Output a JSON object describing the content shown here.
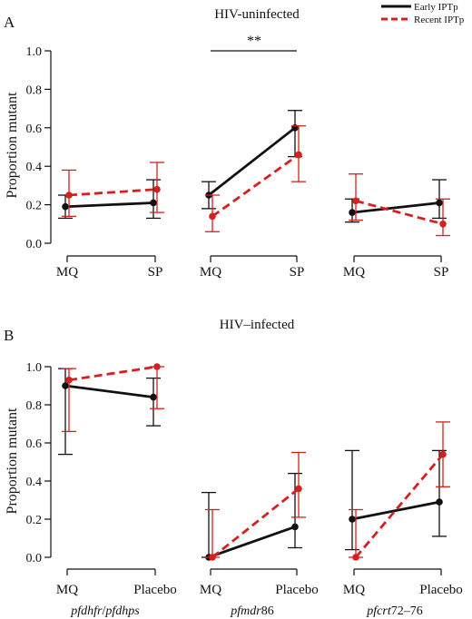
{
  "colors": {
    "early": "#111111",
    "recent": "#d62020"
  },
  "legend": {
    "early_label": "Early IPTp",
    "recent_label": "Recent IPTp"
  },
  "chart_data": [
    {
      "type": "line",
      "panel": "A",
      "title": "HIV-uninfected",
      "ylabel": "Proportion mutant",
      "ylim": [
        0,
        1
      ],
      "yticks": [
        "0.0",
        "0.2",
        "0.4",
        "0.6",
        "0.8",
        "1.0"
      ],
      "significance": "**",
      "groups": [
        {
          "categories": [
            "MQ",
            "SP"
          ],
          "series": [
            {
              "name": "Early IPTp",
              "values": [
                0.19,
                0.21
              ],
              "ci_low": [
                0.13,
                0.13
              ],
              "ci_high": [
                0.25,
                0.33
              ]
            },
            {
              "name": "Recent IPTp",
              "values": [
                0.25,
                0.28
              ],
              "ci_low": [
                0.14,
                0.16
              ],
              "ci_high": [
                0.38,
                0.42
              ]
            }
          ]
        },
        {
          "categories": [
            "MQ",
            "SP"
          ],
          "series": [
            {
              "name": "Early IPTp",
              "values": [
                0.25,
                0.6
              ],
              "ci_low": [
                0.18,
                0.45
              ],
              "ci_high": [
                0.32,
                0.69
              ]
            },
            {
              "name": "Recent IPTp",
              "values": [
                0.14,
                0.46
              ],
              "ci_low": [
                0.06,
                0.32
              ],
              "ci_high": [
                0.25,
                0.61
              ]
            }
          ]
        },
        {
          "categories": [
            "MQ",
            "SP"
          ],
          "series": [
            {
              "name": "Early IPTp",
              "values": [
                0.16,
                0.21
              ],
              "ci_low": [
                0.11,
                0.13
              ],
              "ci_high": [
                0.23,
                0.33
              ]
            },
            {
              "name": "Recent IPTp",
              "values": [
                0.22,
                0.1
              ],
              "ci_low": [
                0.12,
                0.04
              ],
              "ci_high": [
                0.36,
                0.23
              ]
            }
          ]
        }
      ]
    },
    {
      "type": "line",
      "panel": "B",
      "title": "HIV–infected",
      "ylabel": "Proportion mutant",
      "ylim": [
        0,
        1
      ],
      "yticks": [
        "0.0",
        "0.2",
        "0.4",
        "0.6",
        "0.8",
        "1.0"
      ],
      "groups": [
        {
          "label": "pfdhfr/pfdhps",
          "categories": [
            "MQ",
            "Placebo"
          ],
          "series": [
            {
              "name": "Early IPTp",
              "values": [
                0.9,
                0.84
              ],
              "ci_low": [
                0.54,
                0.69
              ],
              "ci_high": [
                0.99,
                0.94
              ]
            },
            {
              "name": "Recent IPTp",
              "values": [
                0.93,
                1.0
              ],
              "ci_low": [
                0.66,
                0.78
              ],
              "ci_high": [
                0.99,
                1.0
              ]
            }
          ]
        },
        {
          "label": "pfmdr86",
          "categories": [
            "MQ",
            "Placebo"
          ],
          "series": [
            {
              "name": "Early IPTp",
              "values": [
                0.0,
                0.16
              ],
              "ci_low": [
                0.0,
                0.05
              ],
              "ci_high": [
                0.34,
                0.44
              ]
            },
            {
              "name": "Recent IPTp",
              "values": [
                0.0,
                0.36
              ],
              "ci_low": [
                0.0,
                0.21
              ],
              "ci_high": [
                0.25,
                0.55
              ]
            }
          ]
        },
        {
          "label": "pfcrt72–76",
          "categories": [
            "MQ",
            "Placebo"
          ],
          "series": [
            {
              "name": "Early IPTp",
              "values": [
                0.2,
                0.29
              ],
              "ci_low": [
                0.04,
                0.11
              ],
              "ci_high": [
                0.56,
                0.56
              ]
            },
            {
              "name": "Recent IPTp",
              "values": [
                0.0,
                0.54
              ],
              "ci_low": [
                0.0,
                0.37
              ],
              "ci_high": [
                0.25,
                0.71
              ]
            }
          ]
        }
      ]
    }
  ]
}
